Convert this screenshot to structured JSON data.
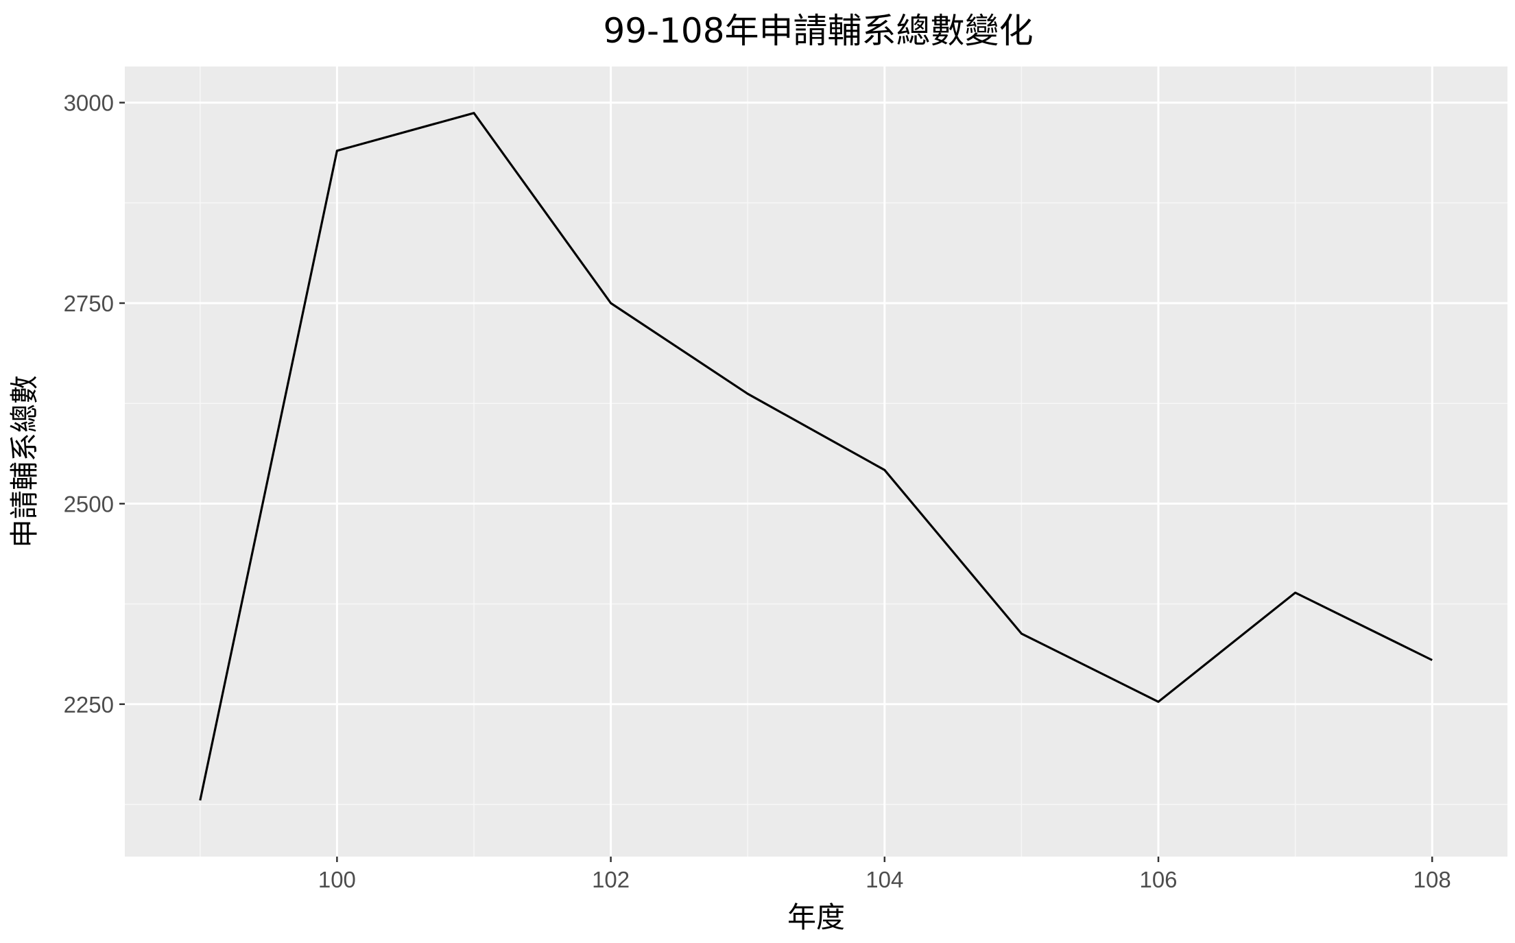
{
  "chart_data": {
    "type": "line",
    "title": "99-108年申請輔系總數變化",
    "xlabel": "年度",
    "ylabel": "申請輔系總數",
    "x": [
      99,
      100,
      101,
      102,
      103,
      104,
      105,
      106,
      107,
      108
    ],
    "series": [
      {
        "values": [
          2130,
          2940,
          2987,
          2750,
          2637,
          2542,
          2338,
          2253,
          2389,
          2305
        ]
      }
    ],
    "xlim": [
      98.45,
      108.55
    ],
    "ylim": [
      2060,
      3045
    ],
    "x_ticks": [
      100,
      102,
      104,
      106,
      108
    ],
    "x_tick_labels": [
      "100",
      "102",
      "104",
      "106",
      "108"
    ],
    "x_minor_ticks": [
      99,
      101,
      103,
      105,
      107
    ],
    "y_ticks": [
      2250,
      2500,
      2750,
      3000
    ],
    "y_tick_labels": [
      "2250",
      "2500",
      "2750",
      "3000"
    ],
    "y_minor_ticks": [
      2125,
      2375,
      2625,
      2875
    ],
    "grid": true,
    "legend": "none",
    "colors": {
      "panel_background": "#EBEBEB",
      "grid_major": "#FFFFFF",
      "grid_minor": "#F7F7F7",
      "line": "#000000",
      "tick": "#333333",
      "tick_label": "#4D4D4D"
    }
  }
}
